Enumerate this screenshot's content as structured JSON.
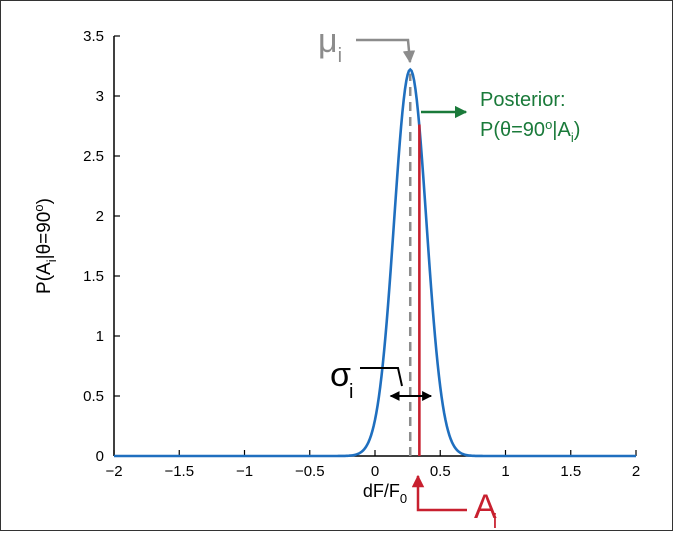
{
  "chart_data": {
    "type": "line",
    "xlabel": "dF/F",
    "xlabel_sub": "0",
    "ylabel_parts": [
      "P(A",
      "i",
      "|θ=90",
      "o",
      ")"
    ],
    "xlim": [
      -2,
      2
    ],
    "ylim": [
      0,
      3.5
    ],
    "xticks": [
      -2,
      -1.5,
      -1,
      -0.5,
      0,
      0.5,
      1,
      1.5,
      2
    ],
    "xtick_labels": [
      "−2",
      "−1.5",
      "−1",
      "−0.5",
      "0",
      "0.5",
      "1",
      "1.5",
      "2"
    ],
    "yticks": [
      0,
      0.5,
      1,
      1.5,
      2,
      2.5,
      3,
      3.5
    ],
    "ytick_labels": [
      "0",
      "0.5",
      "1",
      "1.5",
      "2",
      "2.5",
      "3",
      "3.5"
    ],
    "grid": false,
    "series": [
      {
        "curve": "gaussian",
        "mean": 0.27,
        "sd": 0.124,
        "peak": 3.22,
        "color": "#1f6fbf"
      }
    ],
    "markers": {
      "mu_x": 0.27,
      "A_x": 0.34,
      "sigma_from_x": 0.12,
      "sigma_to_x": 0.43,
      "sigma_y": 0.5
    },
    "annotations": {
      "mu": {
        "symbol": "μ",
        "sub": "i",
        "color": "#8c8c8c"
      },
      "A": {
        "symbol": "A",
        "sub": "i",
        "color": "#c8202f"
      },
      "sigma": {
        "symbol": "σ",
        "sub": "i",
        "color": "#000000"
      },
      "posterior": {
        "line1": "Posterior:",
        "line2_parts": [
          "P(θ=90",
          "o",
          "|A",
          "i",
          ")"
        ],
        "color": "#1a7a3a"
      }
    }
  }
}
